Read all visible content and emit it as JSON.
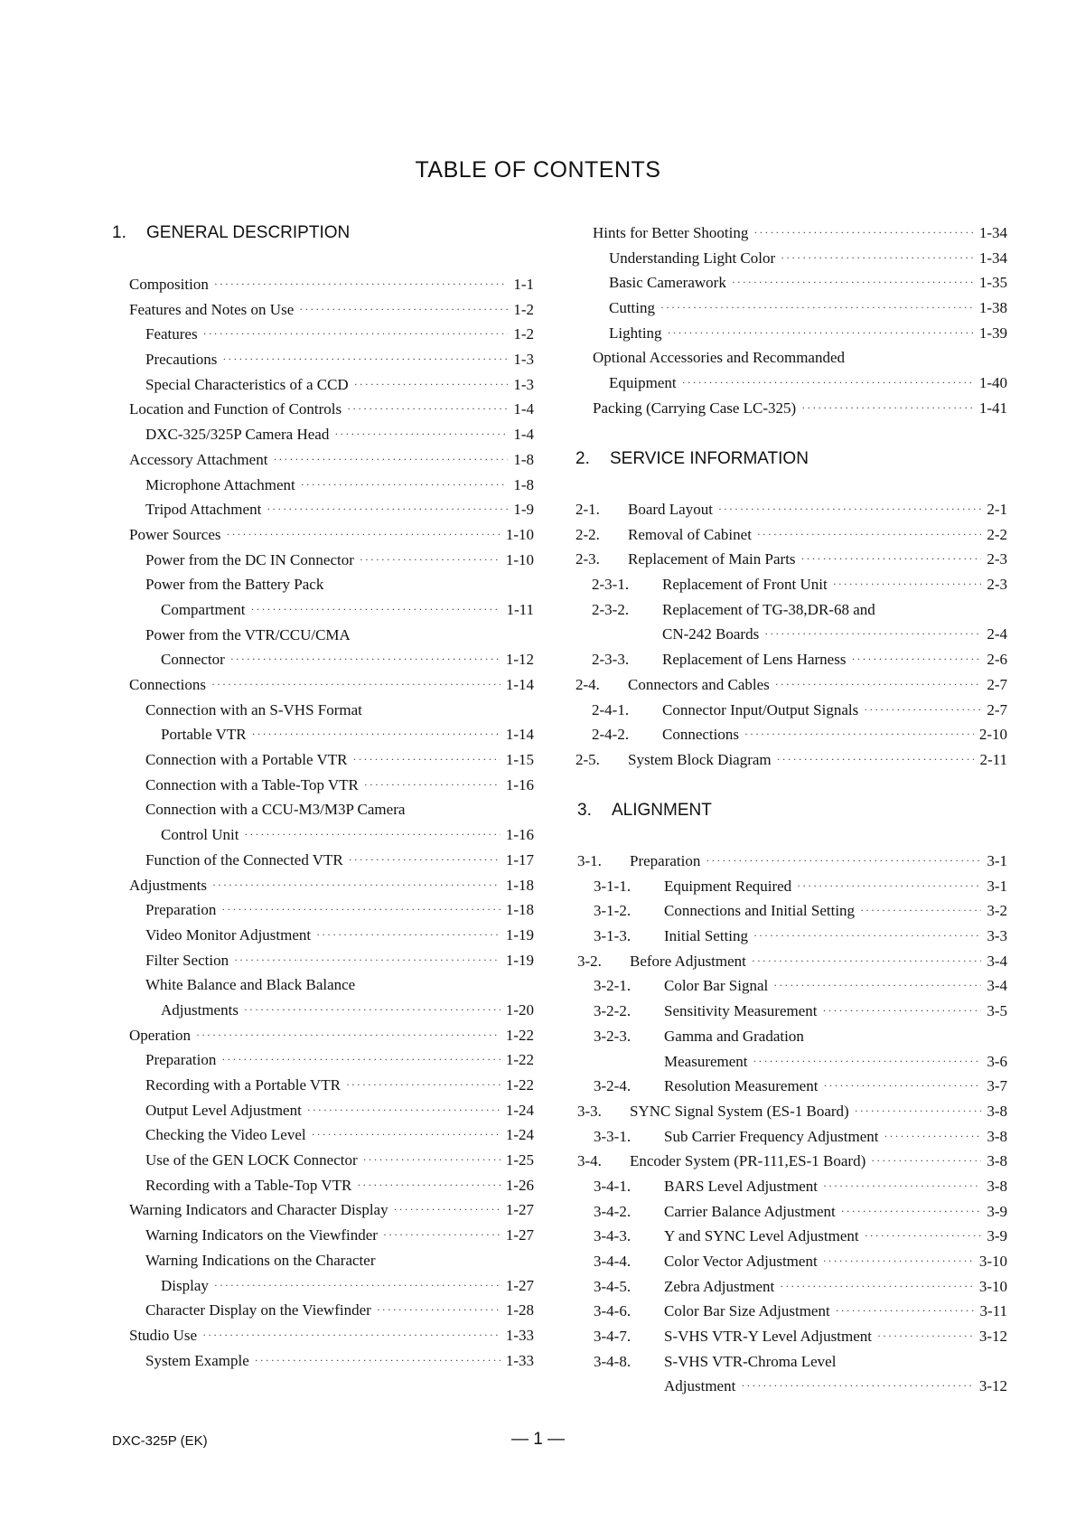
{
  "title": "TABLE OF CONTENTS",
  "sections": [
    {
      "number": "1.",
      "title": "GENERAL DESCRIPTION"
    },
    {
      "number": "2.",
      "title": "SERVICE INFORMATION"
    },
    {
      "number": "3.",
      "title": "ALIGNMENT"
    }
  ],
  "lists": {
    "left": [
      {
        "level": 0,
        "text": "Composition",
        "page": "1-1"
      },
      {
        "level": 0,
        "text": "Features and Notes on Use",
        "page": "1-2"
      },
      {
        "level": 1,
        "text": "Features",
        "page": "1-2"
      },
      {
        "level": 1,
        "text": "Precautions",
        "page": "1-3"
      },
      {
        "level": 1,
        "text": "Special Characteristics of a CCD",
        "page": "1-3"
      },
      {
        "level": 0,
        "text": "Location and Function of Controls",
        "page": "1-4"
      },
      {
        "level": 1,
        "text": "DXC-325/325P Camera Head",
        "page": "1-4"
      },
      {
        "level": 0,
        "text": "Accessory Attachment",
        "page": "1-8"
      },
      {
        "level": 1,
        "text": "Microphone Attachment",
        "page": "1-8"
      },
      {
        "level": 1,
        "text": "Tripod Attachment",
        "page": "1-9"
      },
      {
        "level": 0,
        "text": "Power Sources",
        "page": "1-10"
      },
      {
        "level": 1,
        "text": "Power from the DC IN Connector",
        "page": "1-10"
      },
      {
        "level": 1,
        "text": "Power from the Battery Pack",
        "page": ""
      },
      {
        "level": 2,
        "text": "Compartment",
        "page": "1-11"
      },
      {
        "level": 1,
        "text": "Power from the VTR/CCU/CMA",
        "page": ""
      },
      {
        "level": 2,
        "text": "Connector",
        "page": "1-12"
      },
      {
        "level": 0,
        "text": "Connections",
        "page": "1-14"
      },
      {
        "level": 1,
        "text": "Connection with an S-VHS Format",
        "page": ""
      },
      {
        "level": 2,
        "text": "Portable VTR",
        "page": "1-14"
      },
      {
        "level": 1,
        "text": "Connection with a Portable VTR",
        "page": "1-15"
      },
      {
        "level": 1,
        "text": "Connection with a Table-Top VTR",
        "page": "1-16"
      },
      {
        "level": 1,
        "text": "Connection with a CCU-M3/M3P Camera",
        "page": ""
      },
      {
        "level": 2,
        "text": "Control Unit",
        "page": "1-16"
      },
      {
        "level": 1,
        "text": "Function of the Connected VTR",
        "page": "1-17"
      },
      {
        "level": 0,
        "text": "Adjustments",
        "page": "1-18"
      },
      {
        "level": 1,
        "text": "Preparation",
        "page": "1-18"
      },
      {
        "level": 1,
        "text": "Video Monitor Adjustment",
        "page": "1-19"
      },
      {
        "level": 1,
        "text": "Filter Section",
        "page": "1-19"
      },
      {
        "level": 1,
        "text": "White Balance and Black Balance",
        "page": ""
      },
      {
        "level": 2,
        "text": "Adjustments",
        "page": "1-20"
      },
      {
        "level": 0,
        "text": "Operation",
        "page": "1-22"
      },
      {
        "level": 1,
        "text": "Preparation",
        "page": "1-22"
      },
      {
        "level": 1,
        "text": "Recording with a Portable VTR",
        "page": "1-22"
      },
      {
        "level": 1,
        "text": "Output Level Adjustment",
        "page": "1-24"
      },
      {
        "level": 1,
        "text": "Checking the Video Level",
        "page": "1-24"
      },
      {
        "level": 1,
        "text": "Use of the GEN LOCK Connector",
        "page": "1-25"
      },
      {
        "level": 1,
        "text": "Recording with a Table-Top VTR",
        "page": "1-26"
      },
      {
        "level": 0,
        "text": "Warning Indicators and Character Display",
        "page": "1-27"
      },
      {
        "level": 1,
        "text": "Warning Indicators on the Viewfinder",
        "page": "1-27"
      },
      {
        "level": 1,
        "text": "Warning Indications on the Character",
        "page": ""
      },
      {
        "level": 2,
        "text": "Display",
        "page": "1-27"
      },
      {
        "level": 1,
        "text": "Character Display on the Viewfinder",
        "page": "1-28"
      },
      {
        "level": 0,
        "text": "Studio Use",
        "page": "1-33"
      },
      {
        "level": 1,
        "text": "System Example",
        "page": "1-33"
      }
    ],
    "right1": [
      {
        "level": 0,
        "text": "Hints for Better Shooting",
        "page": "1-34"
      },
      {
        "level": 1,
        "text": "Understanding Light Color",
        "page": "1-34"
      },
      {
        "level": 1,
        "text": "Basic Camerawork",
        "page": "1-35"
      },
      {
        "level": 1,
        "text": "Cutting",
        "page": "1-38"
      },
      {
        "level": 1,
        "text": "Lighting",
        "page": "1-39"
      },
      {
        "level": 0,
        "text": "Optional Accessories and Recommanded",
        "page": ""
      },
      {
        "level": 1,
        "text": "Equipment",
        "page": "1-40"
      },
      {
        "level": 0,
        "text": "Packing (Carrying Case LC-325)",
        "page": "1-41"
      }
    ],
    "right2": [
      {
        "num": "2-1.",
        "level": "n1",
        "text": "Board Layout",
        "page": "2-1"
      },
      {
        "num": "2-2.",
        "level": "n1",
        "text": "Removal of Cabinet",
        "page": "2-2"
      },
      {
        "num": "2-3.",
        "level": "n1",
        "text": "Replacement of Main Parts",
        "page": "2-3"
      },
      {
        "num": "2-3-1.",
        "level": "n2",
        "text": "Replacement of Front Unit",
        "page": "2-3"
      },
      {
        "num": "2-3-2.",
        "level": "n2",
        "text": "Replacement of TG-38,DR-68 and",
        "page": ""
      },
      {
        "num": "",
        "level": "n2",
        "text": "CN-242 Boards",
        "page": "2-4"
      },
      {
        "num": "2-3-3.",
        "level": "n2",
        "text": "Replacement of Lens Harness",
        "page": "2-6"
      },
      {
        "num": "2-4.",
        "level": "n1",
        "text": "Connectors and Cables",
        "page": "2-7"
      },
      {
        "num": "2-4-1.",
        "level": "n2",
        "text": "Connector Input/Output Signals",
        "page": "2-7"
      },
      {
        "num": "2-4-2.",
        "level": "n2",
        "text": "Connections",
        "page": "2-10"
      },
      {
        "num": "2-5.",
        "level": "n1",
        "text": "System Block Diagram",
        "page": "2-11"
      }
    ],
    "right3": [
      {
        "num": "3-1.",
        "level": "n1",
        "text": "Preparation",
        "page": "3-1"
      },
      {
        "num": "3-1-1.",
        "level": "n2",
        "text": "Equipment Required",
        "page": "3-1"
      },
      {
        "num": "3-1-2.",
        "level": "n2",
        "text": "Connections and Initial Setting",
        "page": "3-2"
      },
      {
        "num": "3-1-3.",
        "level": "n2",
        "text": "Initial Setting",
        "page": "3-3"
      },
      {
        "num": "3-2.",
        "level": "n1",
        "text": "Before Adjustment",
        "page": "3-4"
      },
      {
        "num": "3-2-1.",
        "level": "n2",
        "text": "Color Bar Signal",
        "page": "3-4"
      },
      {
        "num": "3-2-2.",
        "level": "n2",
        "text": "Sensitivity Measurement",
        "page": "3-5"
      },
      {
        "num": "3-2-3.",
        "level": "n2",
        "text": "Gamma and Gradation",
        "page": ""
      },
      {
        "num": "",
        "level": "n2",
        "text": "Measurement",
        "page": "3-6"
      },
      {
        "num": "3-2-4.",
        "level": "n2",
        "text": "Resolution Measurement",
        "page": "3-7"
      },
      {
        "num": "3-3.",
        "level": "n1",
        "text": "SYNC Signal System (ES-1 Board)",
        "page": "3-8"
      },
      {
        "num": "3-3-1.",
        "level": "n2",
        "text": "Sub Carrier Frequency Adjustment",
        "page": "3-8"
      },
      {
        "num": "3-4.",
        "level": "n1",
        "text": "Encoder System (PR-111,ES-1 Board)",
        "page": "3-8"
      },
      {
        "num": "3-4-1.",
        "level": "n2",
        "text": "BARS Level Adjustment",
        "page": "3-8"
      },
      {
        "num": "3-4-2.",
        "level": "n2",
        "text": "Carrier Balance Adjustment",
        "page": "3-9"
      },
      {
        "num": "3-4-3.",
        "level": "n2",
        "text": "Y and SYNC Level Adjustment",
        "page": "3-9"
      },
      {
        "num": "3-4-4.",
        "level": "n2",
        "text": "Color Vector Adjustment",
        "page": "3-10"
      },
      {
        "num": "3-4-5.",
        "level": "n2",
        "text": "Zebra Adjustment",
        "page": "3-10"
      },
      {
        "num": "3-4-6.",
        "level": "n2",
        "text": "Color Bar Size Adjustment",
        "page": "3-11"
      },
      {
        "num": "3-4-7.",
        "level": "n2",
        "text": "S-VHS VTR-Y Level Adjustment",
        "page": "3-12"
      },
      {
        "num": "3-4-8.",
        "level": "n2",
        "text": "S-VHS VTR-Chroma Level",
        "page": ""
      },
      {
        "num": "",
        "level": "n2",
        "text": "Adjustment",
        "page": "3-12"
      }
    ]
  },
  "footer": {
    "model": "DXC-325P (EK)",
    "page": "— 1 —"
  }
}
